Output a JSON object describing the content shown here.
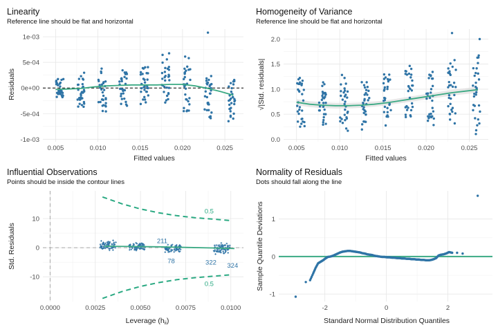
{
  "colors": {
    "point": "#2f74a6",
    "smooth": "#3aa983",
    "contour": "#2aa982",
    "dashed_ref": "#000000",
    "guide": "#a6a6a6"
  },
  "chart_data": [
    {
      "id": "linearity",
      "type": "scatter",
      "title": "Linearity",
      "subtitle": "Reference line should be flat and horizontal",
      "xlabel": "Fitted values",
      "ylabel": "Residuals",
      "xlim": [
        0.0035,
        0.0272
      ],
      "ylim": [
        -0.00105,
        0.00115
      ],
      "xticks": [
        0.005,
        0.01,
        0.015,
        0.02,
        0.025
      ],
      "xtick_labels": [
        "0.005",
        "0.010",
        "0.015",
        "0.020",
        "0.025"
      ],
      "yticks": [
        -0.001,
        -0.0005,
        0,
        0.0005,
        0.001
      ],
      "ytick_labels": [
        "-1e-03",
        "-5e-04",
        "0e+00",
        "5e-04",
        "1e-03"
      ],
      "reference_line": 0,
      "smooth": {
        "x": [
          0.005,
          0.0065,
          0.008,
          0.0095,
          0.011,
          0.0125,
          0.014,
          0.0155,
          0.017,
          0.0185,
          0.02,
          0.0215,
          0.023,
          0.0245,
          0.026
        ],
        "y": [
          -3e-05,
          -2e-05,
          -1e-05,
          2e-05,
          4e-05,
          5e-05,
          6e-05,
          6e-05,
          6e-05,
          7e-05,
          7e-05,
          4e-05,
          -1e-05,
          -7e-05,
          -0.00014
        ]
      },
      "clusters": [
        {
          "x": 0.0055,
          "ymin": -0.00025,
          "ymax": 0.0003
        },
        {
          "x": 0.008,
          "ymin": -0.00045,
          "ymax": 0.0004
        },
        {
          "x": 0.0105,
          "ymin": -0.00055,
          "ymax": 0.00045
        },
        {
          "x": 0.013,
          "ymin": -0.0004,
          "ymax": 0.00045
        },
        {
          "x": 0.0155,
          "ymin": -0.0004,
          "ymax": 0.00055
        },
        {
          "x": 0.018,
          "ymin": -0.0004,
          "ymax": 0.0007
        },
        {
          "x": 0.0205,
          "ymin": -0.00055,
          "ymax": 0.00065
        },
        {
          "x": 0.023,
          "ymin": -0.0007,
          "ymax": 0.00035
        },
        {
          "x": 0.0258,
          "ymin": -0.0009,
          "ymax": 0.0004
        }
      ],
      "extra_points": [
        {
          "x": 0.023,
          "y": 0.00108
        }
      ]
    },
    {
      "id": "homogeneity",
      "type": "scatter",
      "title": "Homogeneity of Variance",
      "subtitle": "Reference line should be flat and horizontal",
      "xlabel": "Fitted values",
      "ylabel": "√|Std. residuals|",
      "xlim": [
        0.0035,
        0.0272
      ],
      "ylim": [
        -0.05,
        2.2
      ],
      "xticks": [
        0.005,
        0.01,
        0.015,
        0.02,
        0.025
      ],
      "xtick_labels": [
        "0.005",
        "0.010",
        "0.015",
        "0.020",
        "0.025"
      ],
      "yticks": [
        0,
        0.5,
        1.0,
        1.5,
        2.0
      ],
      "ytick_labels": [
        "0.0",
        "0.5",
        "1.0",
        "1.5",
        "2.0"
      ],
      "smooth": {
        "x": [
          0.005,
          0.0065,
          0.008,
          0.0095,
          0.011,
          0.0125,
          0.014,
          0.0155,
          0.017,
          0.0185,
          0.02,
          0.0215,
          0.023,
          0.0245,
          0.026
        ],
        "y": [
          0.74,
          0.7,
          0.68,
          0.67,
          0.67,
          0.68,
          0.7,
          0.73,
          0.77,
          0.81,
          0.85,
          0.89,
          0.93,
          0.96,
          0.99
        ]
      },
      "clusters": [
        {
          "x": 0.0055,
          "ymin": 0.1,
          "ymax": 1.3
        },
        {
          "x": 0.008,
          "ymin": 0.15,
          "ymax": 1.3
        },
        {
          "x": 0.0105,
          "ymin": 0.05,
          "ymax": 1.4
        },
        {
          "x": 0.013,
          "ymin": 0.1,
          "ymax": 1.3
        },
        {
          "x": 0.0155,
          "ymin": 0.2,
          "ymax": 1.4
        },
        {
          "x": 0.018,
          "ymin": 0.3,
          "ymax": 1.6
        },
        {
          "x": 0.0205,
          "ymin": 0.1,
          "ymax": 1.6
        },
        {
          "x": 0.023,
          "ymin": 0.15,
          "ymax": 1.7
        },
        {
          "x": 0.0258,
          "ymin": 0.0,
          "ymax": 1.85
        }
      ],
      "extra_points": [
        {
          "x": 0.023,
          "y": 2.12
        },
        {
          "x": 0.0262,
          "y": 2.0
        }
      ]
    },
    {
      "id": "influential",
      "type": "scatter",
      "title": "Influential Observations",
      "subtitle": "Points should be inside the contour lines",
      "xlabel": "Leverage (hii)",
      "ylabel": "Std. Residuals",
      "xlim": [
        -0.0004,
        0.0107
      ],
      "ylim": [
        -18.5,
        19.5
      ],
      "xticks": [
        0.0,
        0.0025,
        0.005,
        0.0075,
        0.01
      ],
      "xtick_labels": [
        "0.0000",
        "0.0025",
        "0.0050",
        "0.0075",
        "0.0100"
      ],
      "yticks": [
        -10,
        0,
        10
      ],
      "ytick_labels": [
        "-10",
        "0",
        "10"
      ],
      "contour_upper": {
        "x": [
          0.0029,
          0.004,
          0.005,
          0.006,
          0.007,
          0.008,
          0.009,
          0.01
        ],
        "y": [
          17.4,
          15.0,
          13.3,
          12.0,
          11.0,
          10.3,
          9.8,
          9.3
        ]
      },
      "contour_lower": {
        "x": [
          0.0029,
          0.004,
          0.005,
          0.006,
          0.007,
          0.008,
          0.009,
          0.01
        ],
        "y": [
          -17.4,
          -15.0,
          -13.3,
          -12.0,
          -11.0,
          -10.3,
          -9.8,
          -9.3
        ]
      },
      "contour_labels": [
        {
          "text": "0.5",
          "x": 0.0088,
          "y": 12.5
        },
        {
          "text": "0.5",
          "x": 0.0088,
          "y": -12.5
        }
      ],
      "clusters": [
        {
          "x": 0.0032,
          "ymin": -1.2,
          "ymax": 2.6
        },
        {
          "x": 0.0048,
          "ymin": -1.4,
          "ymax": 2.0
        },
        {
          "x": 0.0068,
          "ymin": -2.0,
          "ymax": 1.6
        },
        {
          "x": 0.0095,
          "ymin": -2.5,
          "ymax": 2.0
        }
      ],
      "smooth": {
        "x": [
          0.003,
          0.0045,
          0.006,
          0.0075,
          0.009,
          0.0102
        ],
        "y": [
          0.5,
          0.4,
          0.3,
          0.1,
          -0.1,
          -0.3
        ]
      },
      "labels": [
        {
          "text": "211",
          "x": 0.0062,
          "y": 2.3
        },
        {
          "text": "78",
          "x": 0.0067,
          "y": -4.6
        },
        {
          "text": "322",
          "x": 0.0089,
          "y": -5.1
        },
        {
          "text": "324",
          "x": 0.0101,
          "y": -6.2
        }
      ]
    },
    {
      "id": "normality",
      "type": "scatter",
      "title": "Normality of Residuals",
      "subtitle": "Dots should fall along the line",
      "xlabel": "Standard Normal Distribution Quantiles",
      "ylabel": "Sample Quantile Deviations",
      "xlim": [
        -3.5,
        3.45
      ],
      "ylim": [
        -1.2,
        1.75
      ],
      "xticks": [
        -2,
        0,
        2
      ],
      "xtick_labels": [
        "-2",
        "0",
        "2"
      ],
      "yticks": [
        -1,
        0,
        1
      ],
      "ytick_labels": [
        "-1",
        "0",
        "1"
      ],
      "reference_line": 0,
      "points": [
        {
          "x": -2.95,
          "y": -1.07
        },
        {
          "x": -2.62,
          "y": -0.68
        },
        {
          "x": -2.48,
          "y": -0.63
        },
        {
          "x": -2.38,
          "y": -0.45
        },
        {
          "x": -2.3,
          "y": -0.3
        },
        {
          "x": -2.22,
          "y": -0.18
        },
        {
          "x": -2.14,
          "y": -0.14
        },
        {
          "x": -2.06,
          "y": -0.1
        },
        {
          "x": -1.98,
          "y": -0.05
        },
        {
          "x": -1.9,
          "y": -0.01
        },
        {
          "x": -1.82,
          "y": 0.0
        },
        {
          "x": -1.74,
          "y": 0.02
        },
        {
          "x": -1.66,
          "y": 0.05
        },
        {
          "x": -1.58,
          "y": 0.08
        },
        {
          "x": -1.5,
          "y": 0.11
        },
        {
          "x": -1.42,
          "y": 0.13
        },
        {
          "x": -1.34,
          "y": 0.14
        },
        {
          "x": -1.26,
          "y": 0.15
        },
        {
          "x": -1.18,
          "y": 0.15
        },
        {
          "x": -1.1,
          "y": 0.14
        },
        {
          "x": -1.02,
          "y": 0.13
        },
        {
          "x": -0.94,
          "y": 0.12
        },
        {
          "x": -0.86,
          "y": 0.11
        },
        {
          "x": -0.78,
          "y": 0.09
        },
        {
          "x": -0.7,
          "y": 0.08
        },
        {
          "x": -0.62,
          "y": 0.06
        },
        {
          "x": -0.54,
          "y": 0.05
        },
        {
          "x": -0.46,
          "y": 0.04
        },
        {
          "x": -0.38,
          "y": 0.02
        },
        {
          "x": -0.3,
          "y": 0.01
        },
        {
          "x": -0.22,
          "y": 0.0
        },
        {
          "x": -0.14,
          "y": -0.01
        },
        {
          "x": -0.06,
          "y": -0.01
        },
        {
          "x": 0.02,
          "y": -0.02
        },
        {
          "x": 0.1,
          "y": -0.02
        },
        {
          "x": 0.18,
          "y": -0.03
        },
        {
          "x": 0.26,
          "y": -0.03
        },
        {
          "x": 0.34,
          "y": -0.04
        },
        {
          "x": 0.42,
          "y": -0.04
        },
        {
          "x": 0.5,
          "y": -0.05
        },
        {
          "x": 0.58,
          "y": -0.05
        },
        {
          "x": 0.66,
          "y": -0.06
        },
        {
          "x": 0.74,
          "y": -0.06
        },
        {
          "x": 0.82,
          "y": -0.07
        },
        {
          "x": 0.9,
          "y": -0.07
        },
        {
          "x": 0.98,
          "y": -0.08
        },
        {
          "x": 1.06,
          "y": -0.08
        },
        {
          "x": 1.14,
          "y": -0.09
        },
        {
          "x": 1.22,
          "y": -0.09
        },
        {
          "x": 1.3,
          "y": -0.1
        },
        {
          "x": 1.38,
          "y": -0.1
        },
        {
          "x": 1.46,
          "y": -0.09
        },
        {
          "x": 1.54,
          "y": -0.07
        },
        {
          "x": 1.62,
          "y": -0.04
        },
        {
          "x": 1.7,
          "y": 0.03
        },
        {
          "x": 1.78,
          "y": 0.05
        },
        {
          "x": 1.86,
          "y": 0.06
        },
        {
          "x": 1.94,
          "y": 0.08
        },
        {
          "x": 2.04,
          "y": 0.12
        },
        {
          "x": 2.14,
          "y": 0.1
        },
        {
          "x": 2.3,
          "y": 0.1
        },
        {
          "x": 2.48,
          "y": 0.08
        },
        {
          "x": 2.97,
          "y": 1.62
        }
      ]
    }
  ]
}
